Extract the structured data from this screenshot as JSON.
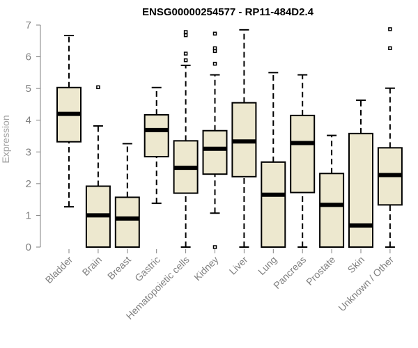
{
  "chart_data": {
    "type": "boxplot",
    "title": "ENSG00000254577 - RP11-484D2.4",
    "xlabel": "",
    "ylabel": "Expression",
    "ylim": [
      0,
      7
    ],
    "yticks": [
      "0",
      "1",
      "2",
      "3",
      "4",
      "5",
      "6",
      "7"
    ],
    "box_color": "#ede8cf",
    "categories": [
      "Bladder",
      "Brain",
      "Breast",
      "Gastric",
      "Hematopoietic cells",
      "Kidney",
      "Liver",
      "Lung",
      "Pancreas",
      "Prostate",
      "Skin",
      "Unknown / Other"
    ],
    "series": [
      {
        "name": "Bladder",
        "whisker_low": 1.27,
        "q1": 3.32,
        "median": 4.2,
        "q3": 5.03,
        "whisker_high": 6.67,
        "outliers": []
      },
      {
        "name": "Brain",
        "whisker_low": 0,
        "q1": 0,
        "median": 1.0,
        "q3": 1.92,
        "whisker_high": 3.82,
        "outliers": [
          5.04
        ]
      },
      {
        "name": "Breast",
        "whisker_low": 0,
        "q1": 0,
        "median": 0.9,
        "q3": 1.57,
        "whisker_high": 3.26,
        "outliers": []
      },
      {
        "name": "Gastric",
        "whisker_low": 1.38,
        "q1": 2.85,
        "median": 3.69,
        "q3": 4.17,
        "whisker_high": 5.03,
        "outliers": []
      },
      {
        "name": "Hematopoietic cells",
        "whisker_low": 0,
        "q1": 1.7,
        "median": 2.5,
        "q3": 3.35,
        "whisker_high": 5.73,
        "outliers": [
          5.89,
          6.1,
          6.68,
          6.78
        ]
      },
      {
        "name": "Kidney",
        "whisker_low": 1.07,
        "q1": 2.3,
        "median": 3.1,
        "q3": 3.67,
        "whisker_high": 5.43,
        "outliers": [
          0.0,
          5.78,
          6.18,
          6.27,
          6.73
        ]
      },
      {
        "name": "Liver",
        "whisker_low": 0,
        "q1": 2.22,
        "median": 3.33,
        "q3": 4.55,
        "whisker_high": 6.85,
        "outliers": []
      },
      {
        "name": "Lung",
        "whisker_low": 0,
        "q1": 0,
        "median": 1.65,
        "q3": 2.68,
        "whisker_high": 5.5,
        "outliers": []
      },
      {
        "name": "Pancreas",
        "whisker_low": 0,
        "q1": 1.72,
        "median": 3.28,
        "q3": 4.15,
        "whisker_high": 5.43,
        "outliers": []
      },
      {
        "name": "Prostate",
        "whisker_low": 0,
        "q1": 0,
        "median": 1.33,
        "q3": 2.32,
        "whisker_high": 3.52,
        "outliers": []
      },
      {
        "name": "Skin",
        "whisker_low": 0,
        "q1": 0,
        "median": 0.68,
        "q3": 3.58,
        "whisker_high": 4.63,
        "outliers": []
      },
      {
        "name": "Unknown / Other",
        "whisker_low": 0,
        "q1": 1.33,
        "median": 2.27,
        "q3": 3.13,
        "whisker_high": 5.01,
        "outliers": [
          6.27,
          6.87
        ]
      }
    ]
  }
}
